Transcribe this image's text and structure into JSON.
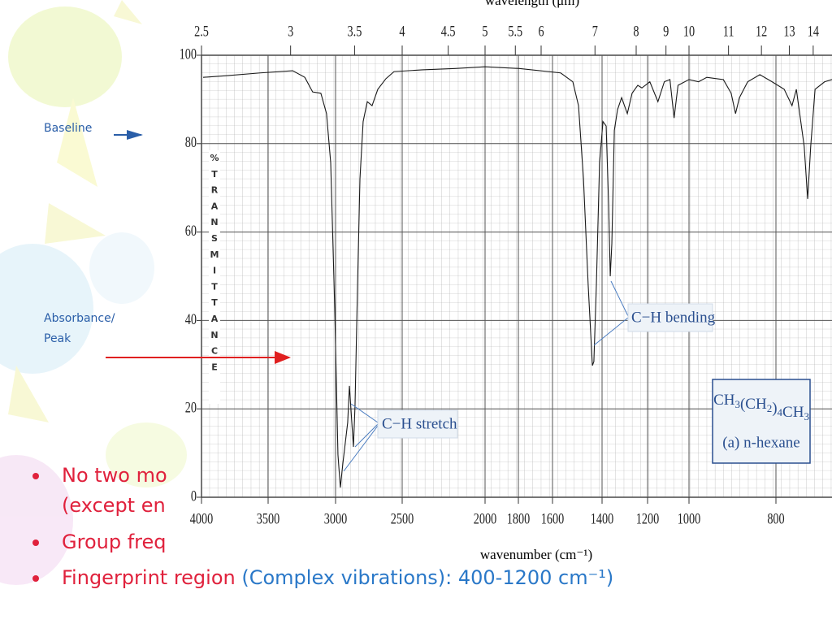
{
  "slide": {
    "baseline_label": "Baseline",
    "absorbance_label": [
      "Absorbance/",
      "Peak"
    ],
    "bullets": [
      [
        [
          {
            "text": "No two mo",
            "color": "#e0213c"
          }
        ],
        [
          {
            "text": "(except en",
            "color": "#e0213c"
          }
        ]
      ],
      [
        [
          {
            "text": "Group freq",
            "color": "#e0213c"
          }
        ]
      ],
      [
        [
          {
            "text": "Fingerprint region ",
            "color": "#e0213c"
          },
          {
            "text": "(Complex vibrations):  400-1200 cm⁻¹)",
            "color": "#2a78c8"
          }
        ]
      ]
    ]
  },
  "chart_data": {
    "type": "line",
    "x_label": "wavenumber (cm⁻¹)",
    "x2_label": "wavelength (μm)",
    "y_label": "% TRANSMITTANCE",
    "color": "#1a1a1a",
    "x": [
      3988,
      3805,
      3560,
      3318,
      3228,
      3170,
      3109,
      3067,
      3036,
      3006,
      2982,
      2964,
      2945,
      2927,
      2909,
      2896,
      2878,
      2866,
      2854,
      2835,
      2817,
      2793,
      2762,
      2726,
      2683,
      2622,
      2561,
      2378,
      2181,
      2000,
      1795,
      1567,
      1518,
      1495,
      1475,
      1456,
      1439,
      1433,
      1423,
      1410,
      1396,
      1382,
      1371,
      1364,
      1357,
      1346,
      1332,
      1314,
      1289,
      1268,
      1243,
      1225,
      1189,
      1150,
      1119,
      1092,
      1072,
      1053,
      1000,
      978,
      959,
      921,
      903,
      893,
      884,
      865,
      837,
      809,
      781,
      763,
      753,
      735,
      727,
      720,
      710,
      688,
      671
    ],
    "values": [
      95,
      95.4,
      96,
      96.5,
      95,
      91.7,
      91.4,
      86.8,
      75.7,
      42.6,
      9.6,
      2.2,
      7.7,
      12.3,
      16.9,
      25.2,
      16.9,
      11.4,
      20.6,
      48,
      72,
      85,
      89.5,
      88.6,
      92.3,
      94.7,
      96.3,
      96.7,
      97,
      97.4,
      97,
      96,
      94,
      88.6,
      72,
      48,
      29.8,
      30.7,
      48,
      75.7,
      85,
      84,
      66,
      50,
      57.4,
      83,
      87.7,
      90.4,
      86.8,
      91.4,
      93.2,
      92.6,
      94,
      89.5,
      94,
      94.5,
      85.8,
      93.2,
      94.5,
      94,
      95,
      94.5,
      91.4,
      86.8,
      90.4,
      94,
      95.6,
      94,
      92.3,
      88.6,
      92.3,
      79.4,
      67.5,
      79.4,
      92.3,
      94,
      94.5
    ],
    "xlim": [
      4000,
      671
    ],
    "xticks": [
      4000,
      3500,
      3000,
      2500,
      2000,
      1800,
      1600,
      1400,
      1200,
      1000,
      800
    ],
    "x2ticks": [
      2.5,
      3,
      3.5,
      4,
      4.5,
      5,
      5.5,
      6,
      7,
      8,
      9,
      10,
      11,
      12,
      13,
      14
    ],
    "ylim": [
      0,
      100
    ],
    "yticks": [
      0,
      20,
      40,
      60,
      80,
      100
    ],
    "grid": true,
    "annotations": [
      "C−H stretch",
      "C−H bending"
    ],
    "compound": [
      "CH3(CH2)4CH3",
      "(a) n-hexane"
    ]
  }
}
